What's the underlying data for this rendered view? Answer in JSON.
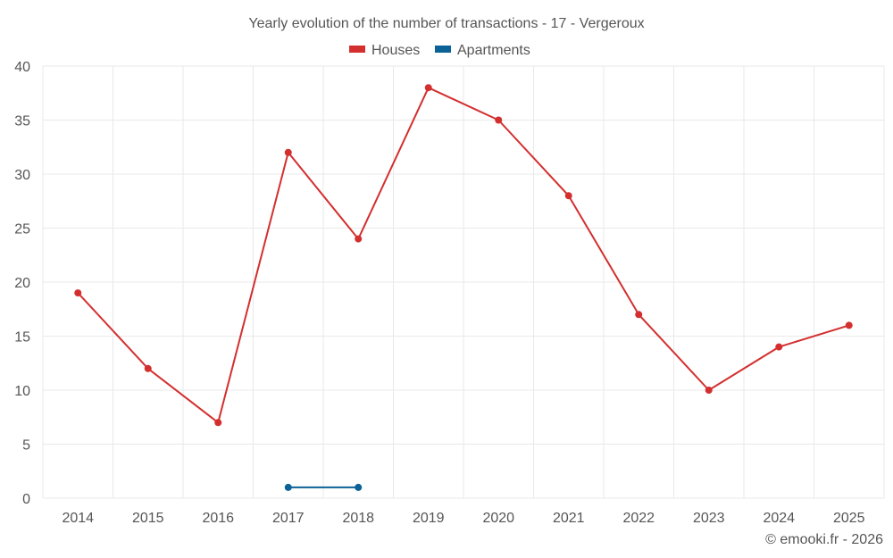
{
  "chart_data": {
    "type": "line",
    "title": "Yearly evolution of the number of transactions - 17 - Vergeroux",
    "categories": [
      "2014",
      "2015",
      "2016",
      "2017",
      "2018",
      "2019",
      "2020",
      "2021",
      "2022",
      "2023",
      "2024",
      "2025"
    ],
    "ylim": [
      0,
      40
    ],
    "yticks": [
      0,
      5,
      10,
      15,
      20,
      25,
      30,
      35,
      40
    ],
    "grid": true,
    "legend_position": "top-center",
    "series": [
      {
        "name": "Houses",
        "color": "#d32f2f",
        "values": [
          19,
          12,
          7,
          32,
          24,
          38,
          35,
          28,
          17,
          10,
          14,
          16
        ]
      },
      {
        "name": "Apartments",
        "color": "#0b6296",
        "values": [
          null,
          null,
          null,
          1,
          1,
          null,
          null,
          null,
          null,
          null,
          null,
          null
        ]
      }
    ],
    "xlabel": "",
    "ylabel": ""
  },
  "credit": "© emooki.fr - 2026"
}
